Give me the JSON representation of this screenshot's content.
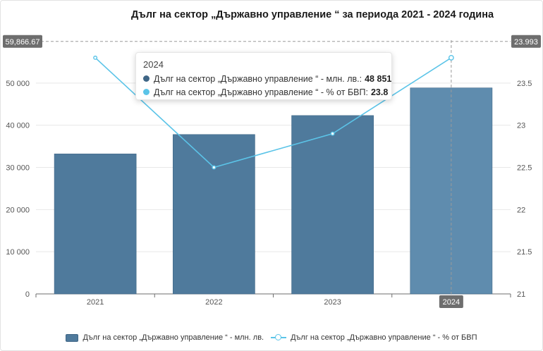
{
  "chart_data": {
    "type": "bar",
    "title": "Дълг на сектор „Държавно управление “  за периода 2021 - 2024 година",
    "categories": [
      "2021",
      "2022",
      "2023",
      "2024"
    ],
    "series": [
      {
        "name": "Дълг на сектор „Държавно управление “ - млн. лв.",
        "type": "bar",
        "axis": "left",
        "values": [
          33200,
          37800,
          42300,
          48851
        ],
        "color": "#4f7a9c",
        "highlight_color": "#5f8cae"
      },
      {
        "name": "Дълг на сектор „Държавно управление “ - % от БВП",
        "type": "line",
        "axis": "right",
        "values": [
          23.8,
          22.5,
          22.9,
          23.8
        ],
        "color": "#5bc4e8"
      }
    ],
    "y_left": {
      "ylim": [
        0,
        60000
      ],
      "ticks": [
        0,
        10000,
        20000,
        30000,
        40000,
        50000
      ],
      "tick_labels": [
        "0",
        "10 000",
        "20 000",
        "30 000",
        "40 000",
        "50 000"
      ]
    },
    "y_right": {
      "ylim": [
        21,
        24
      ],
      "ticks": [
        21,
        21.5,
        22,
        22.5,
        23,
        23.5
      ],
      "tick_labels": [
        "21",
        "21.5",
        "22",
        "22.5",
        "23",
        "23.5"
      ]
    },
    "grid": true,
    "legend_position": "bottom-center",
    "crosshair": {
      "category": "2024",
      "left_value_label": "59,866.67",
      "right_value_label": "23.993",
      "left_value": 59866.67,
      "right_value": 23.993
    }
  },
  "tooltip": {
    "title": "2024",
    "rows": [
      {
        "label": "Дълг на сектор „Държавно управление “ - млн. лв.:",
        "value": "48 851",
        "color": "#3f6686"
      },
      {
        "label": "Дълг на сектор „Държавно управление “ - % от БВП:",
        "value": "23.8",
        "color": "#5bc4e8"
      }
    ]
  }
}
